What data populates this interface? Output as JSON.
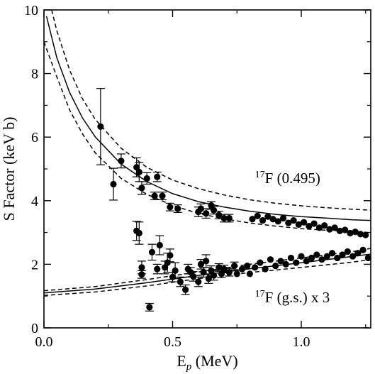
{
  "chart_data": {
    "type": "scatter",
    "xlabel": "E",
    "xlabel_sub": "p",
    "xlabel_unit": " (MeV)",
    "ylabel": "S Factor (keV b)",
    "xlim": [
      0,
      1.27
    ],
    "ylim": [
      0,
      10
    ],
    "x_ticks": [
      {
        "value": 0,
        "label": "0.0"
      },
      {
        "value": 0.5,
        "label": "0.5"
      },
      {
        "value": 1.0,
        "label": "1.0"
      }
    ],
    "y_ticks": [
      {
        "value": 0,
        "label": "0"
      },
      {
        "value": 2,
        "label": "2"
      },
      {
        "value": 4,
        "label": "4"
      },
      {
        "value": 6,
        "label": "6"
      },
      {
        "value": 8,
        "label": "8"
      },
      {
        "value": 10,
        "label": "10"
      }
    ],
    "grid": false,
    "annotations": [
      {
        "id": "excited",
        "sup": "17",
        "text": "F (0.495)",
        "x": 0.82,
        "y": 4.55
      },
      {
        "id": "ground",
        "sup": "17",
        "text": "F (g.s.) x 3",
        "x": 0.82,
        "y": 0.8
      }
    ],
    "series": [
      {
        "id": "excited-data",
        "points": [
          {
            "x": 0.22,
            "y": 6.33,
            "err": 1.2
          },
          {
            "x": 0.27,
            "y": 4.52,
            "err": 0.5
          },
          {
            "x": 0.3,
            "y": 5.25,
            "err": 0.22
          },
          {
            "x": 0.36,
            "y": 5.05,
            "err": 0.3
          },
          {
            "x": 0.37,
            "y": 4.9,
            "err": 0.3
          },
          {
            "x": 0.38,
            "y": 4.4,
            "err": 0.2
          },
          {
            "x": 0.4,
            "y": 4.7,
            "err": 0.18
          },
          {
            "x": 0.43,
            "y": 4.15,
            "err": 0.12
          },
          {
            "x": 0.44,
            "y": 4.75,
            "err": 0.15
          },
          {
            "x": 0.46,
            "y": 4.15,
            "err": 0.12
          },
          {
            "x": 0.49,
            "y": 3.8,
            "err": 0.12
          },
          {
            "x": 0.52,
            "y": 3.75,
            "err": 0.12
          },
          {
            "x": 0.6,
            "y": 3.65,
            "err": 0.15
          },
          {
            "x": 0.61,
            "y": 3.75,
            "err": 0.15
          },
          {
            "x": 0.63,
            "y": 3.6,
            "err": 0.15
          },
          {
            "x": 0.65,
            "y": 3.85,
            "err": 0.12
          },
          {
            "x": 0.66,
            "y": 3.7,
            "err": 0.12
          },
          {
            "x": 0.68,
            "y": 3.55,
            "err": 0.12
          },
          {
            "x": 0.7,
            "y": 3.45,
            "err": 0.12
          },
          {
            "x": 0.72,
            "y": 3.45,
            "err": 0.12
          },
          {
            "x": 0.81,
            "y": 3.42
          },
          {
            "x": 0.83,
            "y": 3.52
          },
          {
            "x": 0.85,
            "y": 3.38
          },
          {
            "x": 0.87,
            "y": 3.5
          },
          {
            "x": 0.89,
            "y": 3.42
          },
          {
            "x": 0.91,
            "y": 3.35
          },
          {
            "x": 0.93,
            "y": 3.45
          },
          {
            "x": 0.95,
            "y": 3.3
          },
          {
            "x": 0.97,
            "y": 3.38
          },
          {
            "x": 0.99,
            "y": 3.25
          },
          {
            "x": 1.01,
            "y": 3.32
          },
          {
            "x": 1.03,
            "y": 3.2
          },
          {
            "x": 1.05,
            "y": 3.28
          },
          {
            "x": 1.07,
            "y": 3.15
          },
          {
            "x": 1.09,
            "y": 3.22
          },
          {
            "x": 1.11,
            "y": 3.1
          },
          {
            "x": 1.13,
            "y": 3.15
          },
          {
            "x": 1.15,
            "y": 3.05
          },
          {
            "x": 1.17,
            "y": 3.08
          },
          {
            "x": 1.19,
            "y": 2.98
          },
          {
            "x": 1.21,
            "y": 3.02
          },
          {
            "x": 1.23,
            "y": 2.95
          },
          {
            "x": 1.25,
            "y": 2.92
          }
        ]
      },
      {
        "id": "ground-data",
        "points": [
          {
            "x": 0.36,
            "y": 3.05,
            "err": 0.3
          },
          {
            "x": 0.37,
            "y": 2.98,
            "err": 0.35
          },
          {
            "x": 0.38,
            "y": 1.9,
            "err": 0.2
          },
          {
            "x": 0.38,
            "y": 1.68,
            "err": 0.12
          },
          {
            "x": 0.41,
            "y": 0.65,
            "err": 0.12
          },
          {
            "x": 0.42,
            "y": 2.38,
            "err": 0.25
          },
          {
            "x": 0.44,
            "y": 1.85,
            "err": 0.15
          },
          {
            "x": 0.45,
            "y": 2.6,
            "err": 0.3
          },
          {
            "x": 0.47,
            "y": 1.9,
            "err": 0.2
          },
          {
            "x": 0.48,
            "y": 2.05,
            "err": 0.3
          },
          {
            "x": 0.49,
            "y": 2.28,
            "err": 0.2
          },
          {
            "x": 0.5,
            "y": 1.6,
            "err": 0.15
          },
          {
            "x": 0.51,
            "y": 1.8,
            "err": 0.25
          },
          {
            "x": 0.53,
            "y": 1.45,
            "err": 0.15
          },
          {
            "x": 0.55,
            "y": 1.2,
            "err": 0.15
          },
          {
            "x": 0.56,
            "y": 1.85,
            "err": 0.15
          },
          {
            "x": 0.57,
            "y": 1.75,
            "err": 0.15
          },
          {
            "x": 0.58,
            "y": 1.62,
            "err": 0.15
          },
          {
            "x": 0.6,
            "y": 1.45,
            "err": 0.15
          },
          {
            "x": 0.61,
            "y": 2.0,
            "err": 0.15
          },
          {
            "x": 0.62,
            "y": 1.75,
            "err": 0.15
          },
          {
            "x": 0.63,
            "y": 2.1,
            "err": 0.2
          },
          {
            "x": 0.64,
            "y": 1.55,
            "err": 0.15
          },
          {
            "x": 0.65,
            "y": 1.8,
            "err": 0.15
          },
          {
            "x": 0.66,
            "y": 1.65,
            "err": 0.15
          },
          {
            "x": 0.68,
            "y": 1.9,
            "err": 0.12
          },
          {
            "x": 0.69,
            "y": 1.7,
            "err": 0.12
          },
          {
            "x": 0.7,
            "y": 1.85,
            "err": 0.12
          },
          {
            "x": 0.72,
            "y": 1.75,
            "err": 0.12
          },
          {
            "x": 0.74,
            "y": 1.95,
            "err": 0.12
          },
          {
            "x": 0.75,
            "y": 1.7
          },
          {
            "x": 0.77,
            "y": 1.85
          },
          {
            "x": 0.79,
            "y": 1.95
          },
          {
            "x": 0.8,
            "y": 1.7
          },
          {
            "x": 0.82,
            "y": 1.9
          },
          {
            "x": 0.84,
            "y": 2.05
          },
          {
            "x": 0.86,
            "y": 1.85
          },
          {
            "x": 0.88,
            "y": 2.15
          },
          {
            "x": 0.9,
            "y": 1.95
          },
          {
            "x": 0.92,
            "y": 2.1
          },
          {
            "x": 0.94,
            "y": 2.0
          },
          {
            "x": 0.96,
            "y": 2.2
          },
          {
            "x": 0.98,
            "y": 2.05
          },
          {
            "x": 1.0,
            "y": 2.25
          },
          {
            "x": 1.02,
            "y": 2.1
          },
          {
            "x": 1.04,
            "y": 2.2
          },
          {
            "x": 1.06,
            "y": 2.3
          },
          {
            "x": 1.08,
            "y": 2.15
          },
          {
            "x": 1.1,
            "y": 2.25
          },
          {
            "x": 1.12,
            "y": 2.35
          },
          {
            "x": 1.14,
            "y": 2.2
          },
          {
            "x": 1.16,
            "y": 2.3
          },
          {
            "x": 1.18,
            "y": 2.4
          },
          {
            "x": 1.2,
            "y": 2.25
          },
          {
            "x": 1.22,
            "y": 2.35
          },
          {
            "x": 1.24,
            "y": 2.45
          },
          {
            "x": 1.26,
            "y": 2.2
          }
        ]
      }
    ],
    "curves": [
      {
        "id": "excited-central",
        "style": "solid",
        "x": [
          0.01,
          0.05,
          0.1,
          0.15,
          0.2,
          0.3,
          0.4,
          0.5,
          0.6,
          0.7,
          0.8,
          0.9,
          1.0,
          1.1,
          1.2,
          1.27
        ],
        "y": [
          9.8,
          8.5,
          7.4,
          6.6,
          6.0,
          5.15,
          4.6,
          4.22,
          3.97,
          3.8,
          3.67,
          3.57,
          3.5,
          3.45,
          3.4,
          3.38
        ]
      },
      {
        "id": "excited-upper",
        "style": "dashed",
        "x": [
          0.03,
          0.05,
          0.1,
          0.15,
          0.2,
          0.3,
          0.4,
          0.5,
          0.6,
          0.7,
          0.8,
          0.9,
          1.0,
          1.1,
          1.2,
          1.27
        ],
        "y": [
          10.0,
          9.35,
          8.1,
          7.2,
          6.55,
          5.65,
          5.05,
          4.65,
          4.38,
          4.18,
          4.03,
          3.92,
          3.84,
          3.78,
          3.73,
          3.7
        ]
      },
      {
        "id": "excited-lower",
        "style": "dashed",
        "x": [
          0.0,
          0.05,
          0.1,
          0.15,
          0.2,
          0.3,
          0.4,
          0.5,
          0.6,
          0.7,
          0.8,
          0.9,
          1.0,
          1.1,
          1.2,
          1.27
        ],
        "y": [
          9.0,
          7.9,
          6.85,
          6.1,
          5.5,
          4.7,
          4.2,
          3.85,
          3.6,
          3.43,
          3.3,
          3.2,
          3.12,
          3.07,
          3.02,
          3.0
        ]
      },
      {
        "id": "ground-central",
        "style": "solid",
        "x": [
          0.0,
          0.2,
          0.4,
          0.6,
          0.8,
          1.0,
          1.2,
          1.27
        ],
        "y": [
          1.1,
          1.22,
          1.42,
          1.65,
          1.86,
          2.05,
          2.25,
          2.32
        ]
      },
      {
        "id": "ground-upper",
        "style": "dashed",
        "x": [
          0.0,
          0.2,
          0.4,
          0.6,
          0.8,
          1.0,
          1.2,
          1.27
        ],
        "y": [
          1.17,
          1.3,
          1.52,
          1.76,
          2.0,
          2.2,
          2.4,
          2.5
        ]
      },
      {
        "id": "ground-lower",
        "style": "dashed",
        "x": [
          0.0,
          0.2,
          0.4,
          0.6,
          0.8,
          1.0,
          1.2,
          1.27
        ],
        "y": [
          1.02,
          1.13,
          1.32,
          1.55,
          1.74,
          1.9,
          2.07,
          2.15
        ]
      }
    ]
  }
}
